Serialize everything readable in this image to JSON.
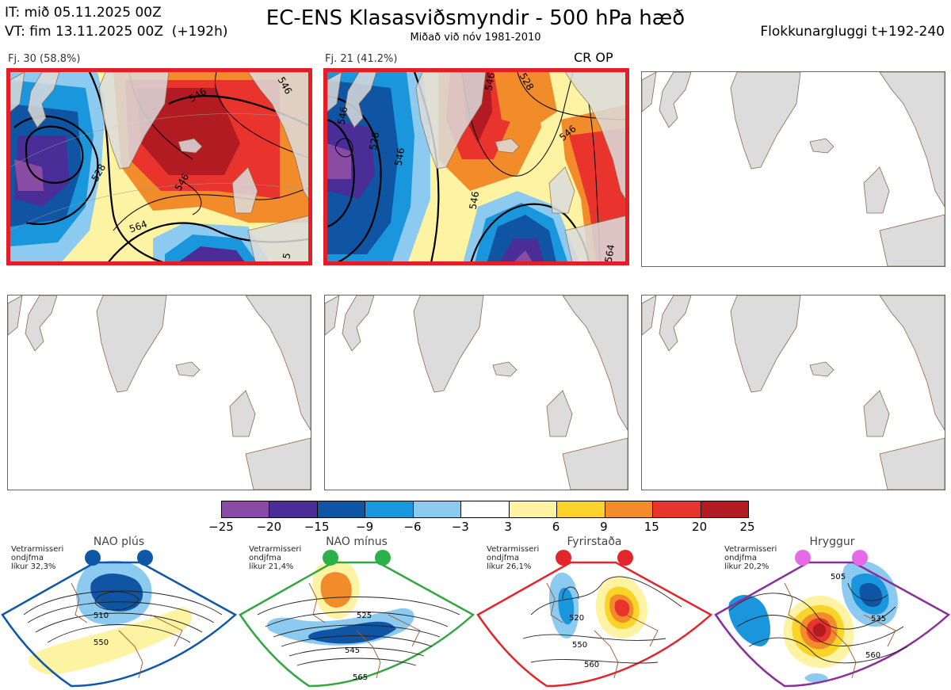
{
  "header": {
    "it_line": "IT: mið 05.11.2025 00Z",
    "vt_line": "VT: fim 13.11.2025 00Z",
    "vt_lead": "(+192h)",
    "title": "EC-ENS Klasasviðsmyndir - 500 hPa hæð",
    "subtitle": "Miðað við nóv 1981-2010",
    "window": "Flokkunargluggi t+192-240"
  },
  "clusters": [
    {
      "label": "Fj. 30 (58.8%)",
      "members": 30,
      "percent": 58.8,
      "contours": [
        "546",
        "528",
        "546",
        "546",
        "564",
        "5"
      ],
      "colored": true
    },
    {
      "label": "Fj. 21 (41.2%)",
      "members": 21,
      "percent": 41.2,
      "contours": [
        "546",
        "528",
        "546",
        "546",
        "528",
        "546",
        "546",
        "564"
      ],
      "colored": true,
      "markers": "CR OP"
    }
  ],
  "colorbar": {
    "ticks": [
      "−25",
      "−20",
      "−15",
      "−9",
      "−6",
      "−3",
      "3",
      "6",
      "9",
      "15",
      "20",
      "25"
    ],
    "colors": [
      "#8a4ba4",
      "#4a2d97",
      "#0f55a4",
      "#1a96dd",
      "#8ccaef",
      "#ffffff",
      "#fdf3a3",
      "#fbd42a",
      "#f28c2b",
      "#e9342d",
      "#b11b21"
    ]
  },
  "regimes": [
    {
      "name": "NAO plús",
      "season": "Vetrarmisseri",
      "type": "ondjfma",
      "prob_label": "líkur 32,3%",
      "probability": 32.3,
      "color": "#0e57a7",
      "dot_color": "#0e57a7",
      "contours": [
        "510",
        "550"
      ]
    },
    {
      "name": "NAO mínus",
      "season": "Vetrarmisseri",
      "type": "ondjfma",
      "prob_label": "líkur 21,4%",
      "probability": 21.4,
      "color": "#33a642",
      "dot_color": "#2bb04a",
      "contours": [
        "525",
        "545",
        "565"
      ]
    },
    {
      "name": "Fyrirstaða",
      "season": "Vetrarmisseri",
      "type": "ondjfma",
      "prob_label": "líkur 26,1%",
      "probability": 26.1,
      "color": "#e2262b",
      "dot_color": "#e2262b",
      "contours": [
        "520",
        "550",
        "560"
      ]
    },
    {
      "name": "Hryggur",
      "season": "Vetrarmisseri",
      "type": "ondjfma",
      "prob_label": "líkur 20,2%",
      "probability": 20.2,
      "color": "#8a2f9a",
      "dot_color": "#e66ae6",
      "contours": [
        "505",
        "535",
        "560"
      ]
    }
  ]
}
